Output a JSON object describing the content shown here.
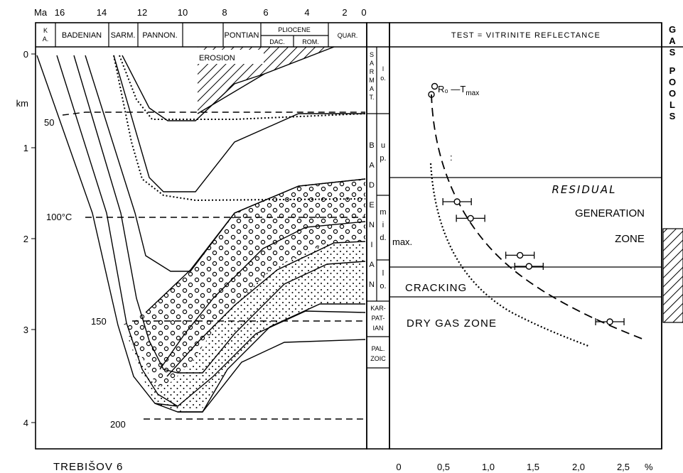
{
  "top_axis": {
    "unit": "Ma",
    "ticks": [
      "16",
      "14",
      "12",
      "10",
      "8",
      "6",
      "4",
      "2",
      "0"
    ]
  },
  "stages": {
    "ka": [
      "K",
      "A."
    ],
    "badenian": "BADENIAN",
    "sarm": "SARM.",
    "pannon": "PANNON.",
    "pontian": "PONTIAN",
    "pliocene": "PLIOCENE",
    "dac": "DAC.",
    "rom": "ROM.",
    "quar": "QUAR."
  },
  "depth_axis": {
    "unit": "km",
    "ticks": [
      "0",
      "1",
      "2",
      "3",
      "4"
    ]
  },
  "isotherms": [
    "50",
    "100°C",
    "150",
    "200"
  ],
  "erosion_label": "EROSION",
  "strat_column": {
    "sarmat": [
      "S",
      "A",
      "R",
      "M",
      "A",
      "T."
    ],
    "sarmat_sub": [
      "l",
      "o."
    ],
    "baden": [
      "B",
      "A",
      "D",
      "E",
      "N",
      "I",
      "A",
      "N"
    ],
    "up": [
      "u",
      "p."
    ],
    "mid": [
      "m",
      "i",
      "d."
    ],
    "lo": [
      "l",
      "o."
    ],
    "max_label": "max.",
    "karpatian": [
      "KAR-",
      "PAT-",
      "IAN"
    ],
    "paleozoic": [
      "PAL.",
      "ZOIC"
    ]
  },
  "right_panel": {
    "title": "TEST = VITRINITE REFLECTANCE",
    "legend_label": "R₀ —T",
    "legend_sub": "max",
    "residual": "RESIDUAL",
    "generation": "GENERATION",
    "zone": "ZONE",
    "cracking": "CRACKING",
    "dry_gas": "DRY GAS ZONE",
    "x_ticks": [
      "0",
      "0,5",
      "1,0",
      "1,5",
      "2,0",
      "2,5"
    ],
    "x_unit": "%"
  },
  "gas_pools": [
    "G",
    "A",
    "S",
    "",
    "P",
    "O",
    "O",
    "L",
    "S"
  ],
  "well_name": "TREBIŠOV 6",
  "chart_data": {
    "type": "scatter",
    "title": "TEST = VITRINITE REFLECTANCE",
    "xlabel": "%",
    "ylabel": "km",
    "xlim": [
      0,
      2.6
    ],
    "ylim": [
      4.2,
      0
    ],
    "series": [
      {
        "values": [
          {
            "x": 0.4,
            "y": 0.35
          },
          {
            "x": 0.65,
            "y": 1.6
          },
          {
            "x": 0.8,
            "y": 1.78
          },
          {
            "x": 1.35,
            "y": 2.18
          },
          {
            "x": 1.45,
            "y": 2.3
          },
          {
            "x": 2.35,
            "y": 2.9
          }
        ]
      }
    ]
  }
}
